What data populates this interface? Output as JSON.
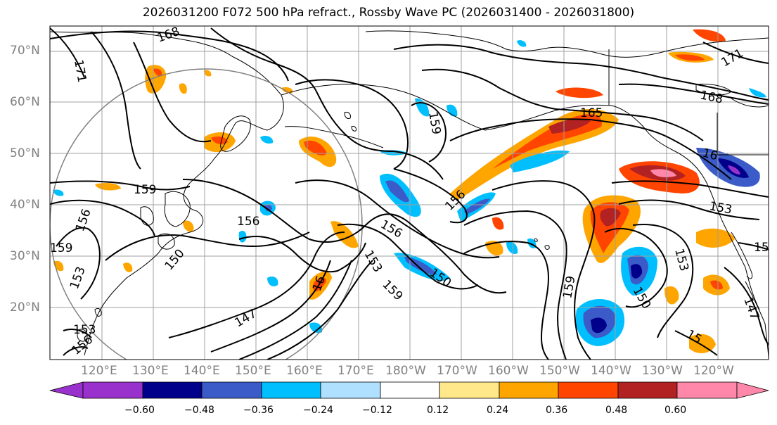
{
  "title": "2026031200 F072 500 hPa refract., Rossby Wave PC (2026031400 - 2026031800)",
  "map": {
    "lat_labels": [
      "70°N",
      "60°N",
      "50°N",
      "40°N",
      "30°N",
      "20°N"
    ],
    "lon_labels": [
      "120°E",
      "130°E",
      "140°E",
      "150°E",
      "160°E",
      "170°E",
      "180°W",
      "170°W",
      "160°W",
      "150°W",
      "140°W",
      "130°W",
      "120°W"
    ],
    "contour_labels": [
      "168",
      "171",
      "159",
      "156",
      "159",
      "150",
      "153",
      "153",
      "156",
      "147",
      "156",
      "153",
      "159",
      "150",
      "159",
      "165",
      "156",
      "16",
      "156",
      "153",
      "159",
      "153",
      "150",
      "15",
      "147",
      "168",
      "171",
      "15",
      "16"
    ]
  },
  "colorbar": {
    "tick_labels": [
      "−0.60",
      "−0.48",
      "−0.36",
      "−0.24",
      "−0.12",
      "0.12",
      "0.24",
      "0.36",
      "0.48",
      "0.60"
    ],
    "colors": [
      "#9932cc",
      "#00008b",
      "#3a5bc8",
      "#00bfff",
      "#b0e0ff",
      "#ffffff",
      "#ffe88a",
      "#ffa500",
      "#ff4500",
      "#b22222",
      "#ff88aa"
    ]
  }
}
